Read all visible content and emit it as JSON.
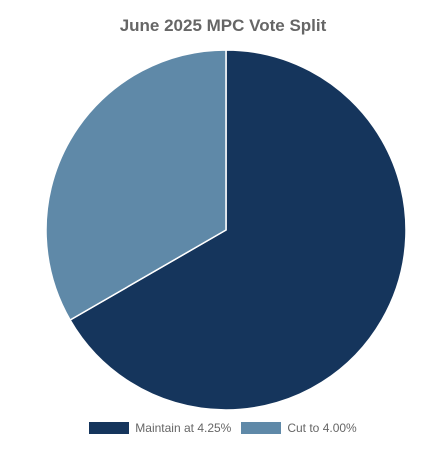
{
  "chart_data": {
    "type": "pie",
    "title": "June 2025 MPC Vote Split",
    "categories": [
      "Maintain at 4.25%",
      "Cut to 4.00%"
    ],
    "values": [
      6,
      3
    ],
    "colors": [
      "#15355c",
      "#5f89a8"
    ],
    "legend_position": "bottom",
    "start_angle_deg": 0,
    "direction": "clockwise"
  }
}
